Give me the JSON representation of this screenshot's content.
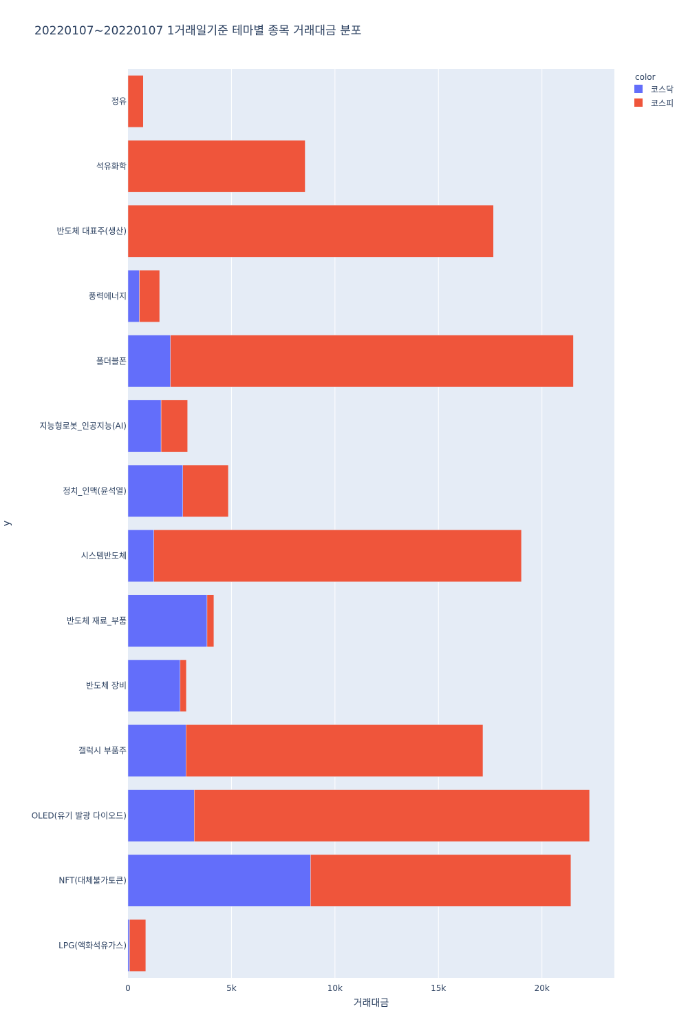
{
  "chart_data": {
    "type": "bar",
    "orientation": "horizontal",
    "barmode": "stack",
    "title": "20220107~20220107 1거래일기준 테마별 종목 거래대금 분포",
    "xlabel": "거래대금",
    "ylabel": "y",
    "xlim": [
      0,
      23500
    ],
    "x_ticks": [
      {
        "value": 0,
        "label": "0"
      },
      {
        "value": 5000,
        "label": "5k"
      },
      {
        "value": 10000,
        "label": "10k"
      },
      {
        "value": 15000,
        "label": "15k"
      },
      {
        "value": 20000,
        "label": "20k"
      }
    ],
    "categories": [
      "정유",
      "석유화학",
      "반도체 대표주(생산)",
      "풍력에너지",
      "폴더블폰",
      "지능형로봇_인공지능(AI)",
      "정치_인맥(윤석열)",
      "시스템반도체",
      "반도체 재료_부품",
      "반도체 장비",
      "갤럭시 부품주",
      "OLED(유기 발광 다이오드)",
      "NFT(대체불가토큰)",
      "LPG(액화석유가스)"
    ],
    "legend_title": "color",
    "legend_position": "top-right",
    "series": [
      {
        "name": "코스닥",
        "color": "#636efa",
        "values": [
          0,
          0,
          0,
          550,
          2050,
          1600,
          2650,
          1250,
          3820,
          2520,
          2800,
          3200,
          8820,
          80
        ]
      },
      {
        "name": "코스피",
        "color": "#ef553b",
        "values": [
          740,
          8560,
          17660,
          980,
          19470,
          1280,
          2200,
          17760,
          330,
          300,
          14350,
          19100,
          12580,
          780
        ]
      }
    ]
  }
}
